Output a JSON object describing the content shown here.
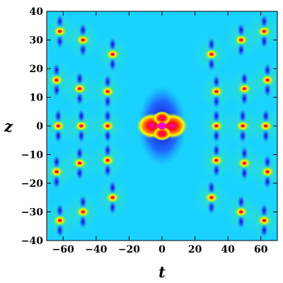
{
  "chart_data": {
    "type": "heatmap",
    "title": "",
    "xlabel": "t",
    "ylabel": "z",
    "xlim": [
      -70,
      70
    ],
    "ylim": [
      -40,
      40
    ],
    "x_ticks": [
      -60,
      -40,
      -20,
      0,
      20,
      40,
      60
    ],
    "y_ticks": [
      -40,
      -30,
      -20,
      -10,
      0,
      10,
      20,
      30,
      40
    ],
    "grid": false,
    "colormap": [
      "#1a00c8",
      "#1e6cff",
      "#19d2ff",
      "#2ce8d0",
      "#8ee64a",
      "#ffff00",
      "#ff7a00",
      "#ff1010",
      "#ff00cc"
    ],
    "background_color": "#19d2ff",
    "central_peak": {
      "t": 0,
      "z": 0
    },
    "peaks": [
      {
        "t": -62,
        "z": 33
      },
      {
        "t": -48,
        "z": 30
      },
      {
        "t": -30,
        "z": 25
      },
      {
        "t": -64,
        "z": 16
      },
      {
        "t": -50,
        "z": 13
      },
      {
        "t": -33,
        "z": 12
      },
      {
        "t": -63,
        "z": 0
      },
      {
        "t": -49,
        "z": 0
      },
      {
        "t": -33,
        "z": 0
      },
      {
        "t": -64,
        "z": -16
      },
      {
        "t": -50,
        "z": -13
      },
      {
        "t": -33,
        "z": -12
      },
      {
        "t": -62,
        "z": -33
      },
      {
        "t": -48,
        "z": -30
      },
      {
        "t": -30,
        "z": -25
      },
      {
        "t": 62,
        "z": 33
      },
      {
        "t": 48,
        "z": 30
      },
      {
        "t": 30,
        "z": 25
      },
      {
        "t": 64,
        "z": 16
      },
      {
        "t": 50,
        "z": 13
      },
      {
        "t": 33,
        "z": 12
      },
      {
        "t": 63,
        "z": 0
      },
      {
        "t": 49,
        "z": 0
      },
      {
        "t": 33,
        "z": 0
      },
      {
        "t": 64,
        "z": -16
      },
      {
        "t": 50,
        "z": -13
      },
      {
        "t": 33,
        "z": -12
      },
      {
        "t": 62,
        "z": -33
      },
      {
        "t": 48,
        "z": -30
      },
      {
        "t": 30,
        "z": -25
      }
    ]
  }
}
